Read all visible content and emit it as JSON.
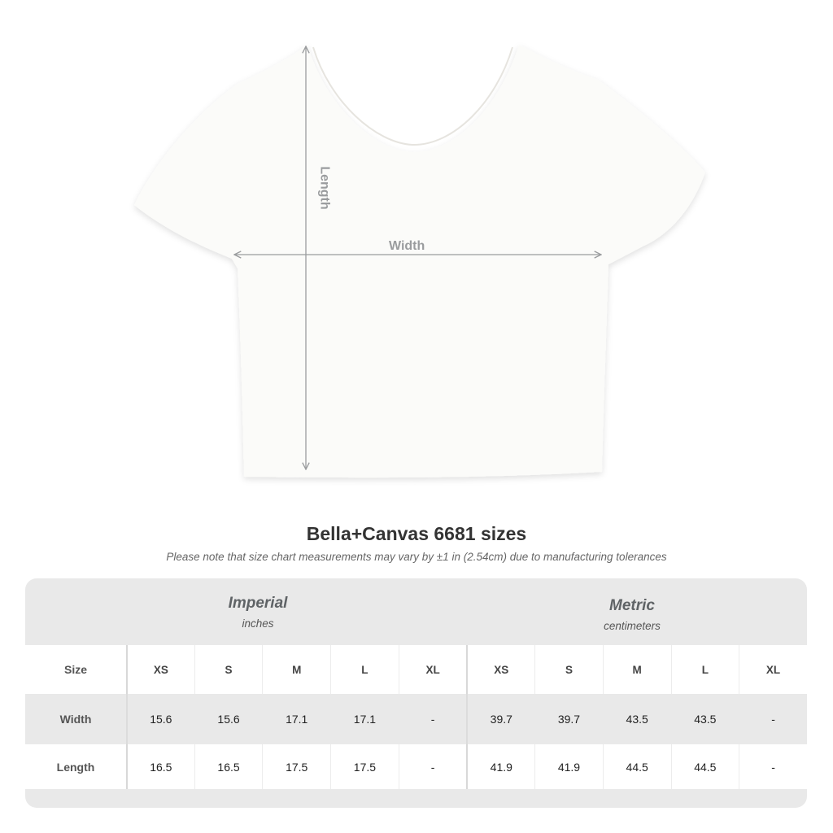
{
  "diagram": {
    "length_label": "Length",
    "width_label": "Width",
    "line_color": "#9a9c9e",
    "shirt_color": "#fbfbf9"
  },
  "title": "Bella+Canvas 6681 sizes",
  "note": "Please note that size chart measurements may vary by ±1 in (2.54cm) due to manufacturing tolerances",
  "table": {
    "groups": [
      {
        "title": "Imperial",
        "unit": "inches"
      },
      {
        "title": "Metric",
        "unit": "centimeters"
      }
    ],
    "rows": [
      {
        "label": "Size",
        "values": [
          "XS",
          "S",
          "M",
          "L",
          "XL",
          "XS",
          "S",
          "M",
          "L",
          "XL"
        ]
      },
      {
        "label": "Width",
        "values": [
          "15.6",
          "15.6",
          "17.1",
          "17.1",
          "-",
          "39.7",
          "39.7",
          "43.5",
          "43.5",
          "-"
        ]
      },
      {
        "label": "Length",
        "values": [
          "16.5",
          "16.5",
          "17.5",
          "17.5",
          "-",
          "41.9",
          "41.9",
          "44.5",
          "44.5",
          "-"
        ]
      }
    ]
  }
}
